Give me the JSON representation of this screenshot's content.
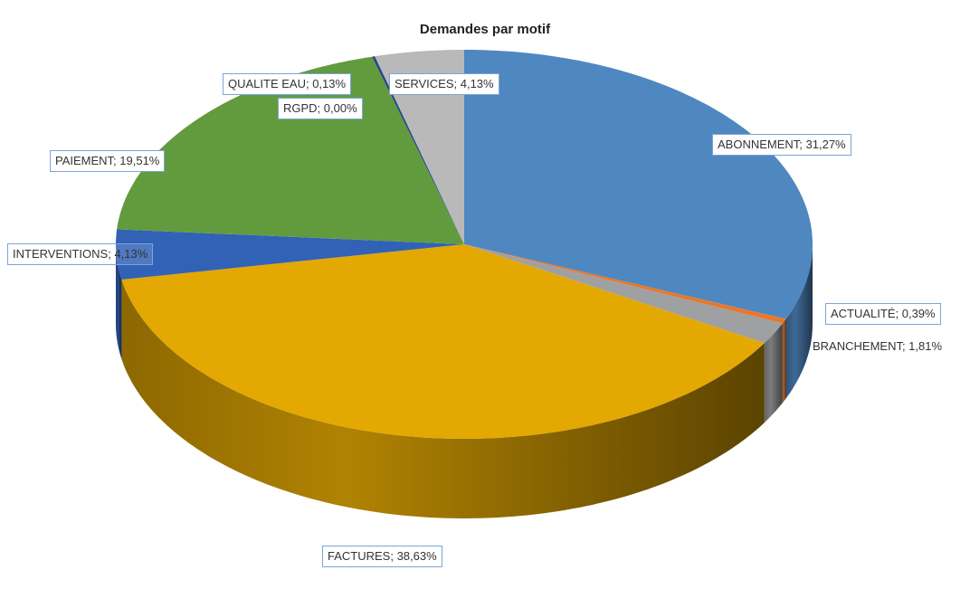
{
  "chart_data": {
    "type": "pie",
    "title": "Demandes par motif",
    "slices": [
      {
        "label": "ABONNEMENT",
        "value": 31.27,
        "text": "ABONNEMENT; 31,27%",
        "color": "#4f87c0"
      },
      {
        "label": "ACTUALITÉ",
        "value": 0.39,
        "text": "ACTUALITÉ; 0,39%",
        "color": "#e8782c"
      },
      {
        "label": "BRANCHEMENT",
        "value": 1.81,
        "text": "BRANCHEMENT; 1,81%",
        "color": "#9fa0a2"
      },
      {
        "label": "FACTURES",
        "value": 38.63,
        "text": "FACTURES; 38,63%",
        "color": "#e3a802"
      },
      {
        "label": "INTERVENTIONS",
        "value": 4.13,
        "text": "INTERVENTIONS; 4,13%",
        "color": "#3162b6"
      },
      {
        "label": "PAIEMENT",
        "value": 19.51,
        "text": "PAIEMENT; 19,51%",
        "color": "#629b3e"
      },
      {
        "label": "QUALITE EAU",
        "value": 0.13,
        "text": "QUALITE EAU; 0,13%",
        "color": "#254a8a"
      },
      {
        "label": "RGPD",
        "value": 0.0,
        "text": "RGPD; 0,00%",
        "color": "#8c5a2a"
      },
      {
        "label": "SERVICES",
        "value": 4.13,
        "text": "SERVICES; 4,13%",
        "color": "#b9b9b9"
      }
    ]
  }
}
